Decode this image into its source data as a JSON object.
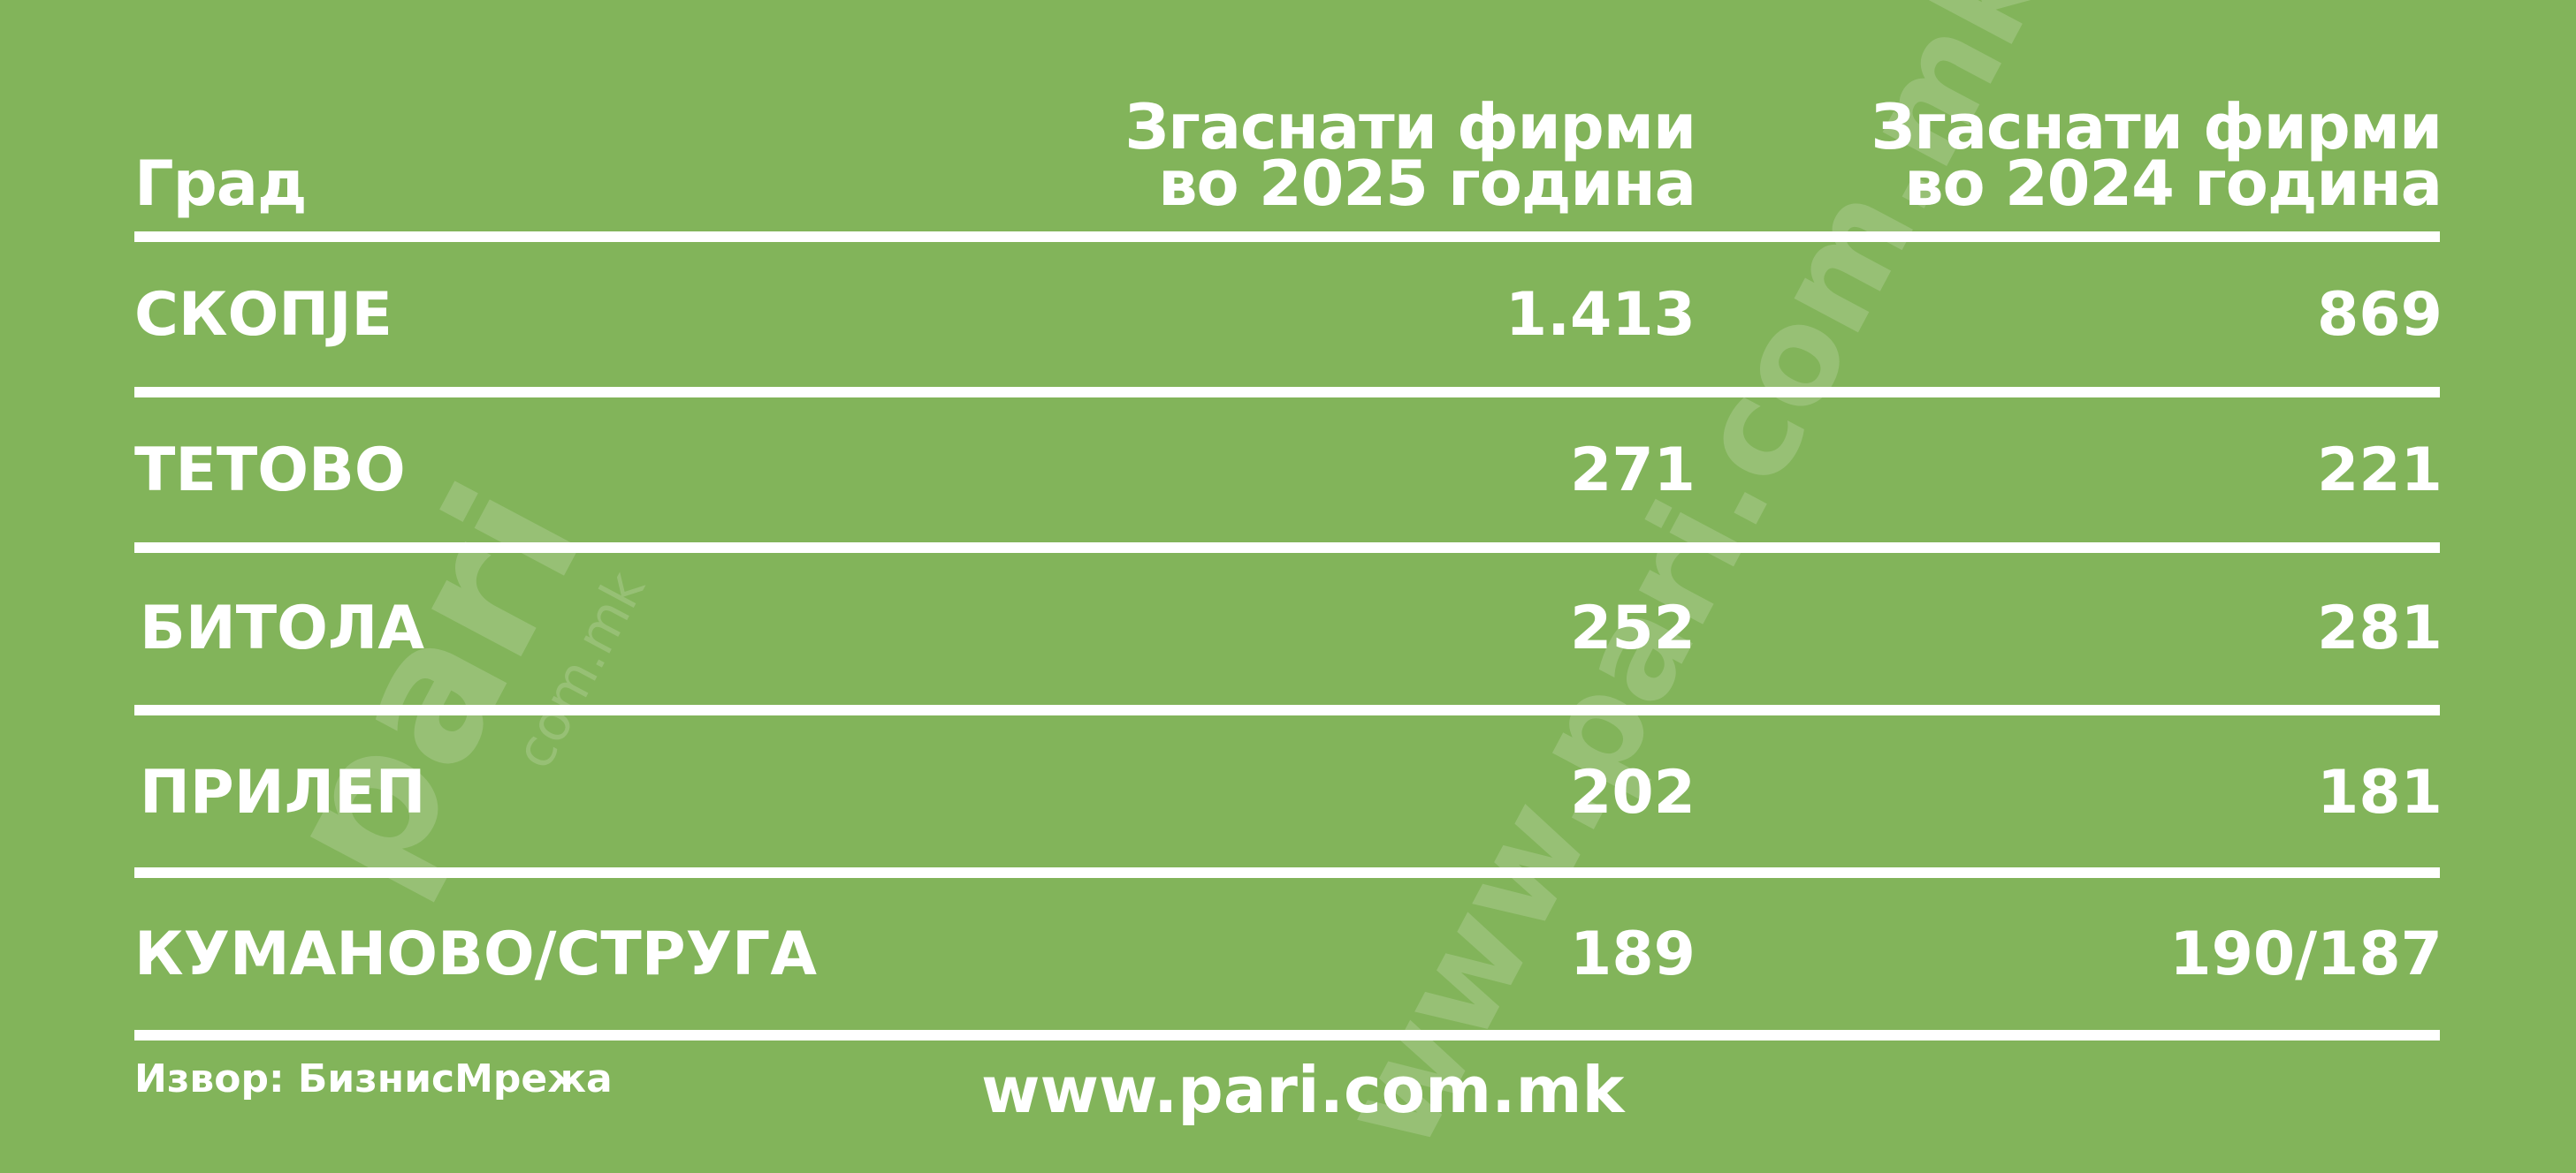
{
  "watermark": {
    "site": "www.pari.com.mk",
    "logo": "pari",
    "logo_sub": "com.mk"
  },
  "colors": {
    "background": "#82b45a",
    "text": "#ffffff"
  },
  "table": {
    "headers": {
      "city": "Град",
      "col_2025_line1": "Згаснати фирми",
      "col_2025_line2": "во 2025 година",
      "col_2024_line1": "Згаснати фирми",
      "col_2024_line2": "во 2024 година"
    },
    "rows": [
      {
        "city": "СКОПЈЕ",
        "y2025": "1.413",
        "y2024": "869"
      },
      {
        "city": "ТЕТОВО",
        "y2025": "271",
        "y2024": "221"
      },
      {
        "city": "БИТОЛА",
        "y2025": "252",
        "y2024": "281"
      },
      {
        "city": "ПРИЛЕП",
        "y2025": "202",
        "y2024": "181"
      },
      {
        "city": "КУМАНОВО/СТРУГА",
        "y2025": "189",
        "y2024": "190/187"
      }
    ]
  },
  "footer": {
    "source": "Извор: БизнисМрежа",
    "site": "www.pari.com.mk"
  }
}
